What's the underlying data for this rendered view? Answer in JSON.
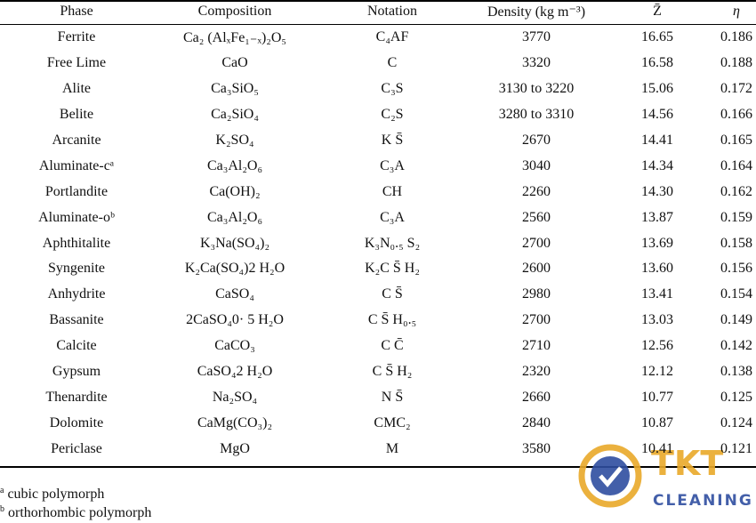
{
  "table": {
    "header": [
      "Phase",
      "Composition",
      "Notation",
      "Density (kg m⁻³)",
      "Z̄",
      "η"
    ],
    "rows": [
      [
        "Ferrite",
        "Ca₂ (AlₓFe₁₋ₓ)₂O₅",
        "C₄AF",
        "3770",
        "16.65",
        "0.186"
      ],
      [
        "Free Lime",
        "CaO",
        "C",
        "3320",
        "16.58",
        "0.188"
      ],
      [
        "Alite",
        "Ca₃SiO₅",
        "C₃S",
        "3130 to 3220",
        "15.06",
        "0.172"
      ],
      [
        "Belite",
        "Ca₂SiO₄",
        "C₂S",
        "3280 to 3310",
        "14.56",
        "0.166"
      ],
      [
        "Arcanite",
        "K₂SO₄",
        "K S̄",
        "2670",
        "14.41",
        "0.165"
      ],
      [
        "Aluminate-cᵃ",
        "Ca₃Al₂O₆",
        "C₃A",
        "3040",
        "14.34",
        "0.164"
      ],
      [
        "Portlandite",
        "Ca(OH)₂",
        "CH",
        "2260",
        "14.30",
        "0.162"
      ],
      [
        "Aluminate-oᵇ",
        "Ca₃Al₂O₆",
        "C₃A",
        "2560",
        "13.87",
        "0.159"
      ],
      [
        "Aphthitalite",
        "K₃Na(SO₄)₂",
        "K₃N₀.₅ S₂",
        "2700",
        "13.69",
        "0.158"
      ],
      [
        "Syngenite",
        "K₂Ca(SO₄)2 H₂O",
        "K₂C S̄ H₂",
        "2600",
        "13.60",
        "0.156"
      ],
      [
        "Anhydrite",
        "CaSO₄",
        "C S̄",
        "2980",
        "13.41",
        "0.154"
      ],
      [
        "Bassanite",
        "2CaSO₄0· 5 H₂O",
        "C S̄ H₀.₅",
        "2700",
        "13.03",
        "0.149"
      ],
      [
        "Calcite",
        "CaCO₃",
        "C C̄",
        "2710",
        "12.56",
        "0.142"
      ],
      [
        "Gypsum",
        "CaSO₄2 H₂O",
        "C S̄ H₂",
        "2320",
        "12.12",
        "0.138"
      ],
      [
        "Thenardite",
        "Na₂SO₄",
        "N S̄",
        "2660",
        "10.77",
        "0.125"
      ],
      [
        "Dolomite",
        "CaMg(CO₃)₂",
        "CMC₂",
        "2840",
        "10.87",
        "0.124"
      ],
      [
        "Periclase",
        "MgO",
        "M",
        "3580",
        "10.41",
        "0.121"
      ]
    ]
  },
  "footnotes": [
    {
      "mark": "a",
      "text": "cubic polymorph"
    },
    {
      "mark": "b",
      "text": "orthorhombic polymorph"
    }
  ],
  "watermark": {
    "brand": "TKT",
    "tagline": "CLEANING"
  }
}
